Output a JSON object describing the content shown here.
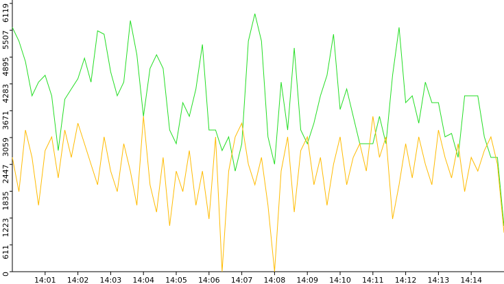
{
  "chart_data": {
    "type": "line",
    "x": [
      0,
      0.2,
      0.4,
      0.6,
      0.8,
      1,
      1.2,
      1.4,
      1.6,
      1.8,
      2,
      2.2,
      2.4,
      2.6,
      2.8,
      3,
      3.2,
      3.4,
      3.6,
      3.8,
      4,
      4.2,
      4.4,
      4.6,
      4.8,
      5,
      5.2,
      5.4,
      5.6,
      5.8,
      6,
      6.2,
      6.4,
      6.6,
      6.8,
      7,
      7.2,
      7.4,
      7.6,
      7.8,
      8,
      8.2,
      8.4,
      8.6,
      8.8,
      9,
      9.2,
      9.4,
      9.6,
      9.8,
      10,
      10.2,
      10.4,
      10.6,
      10.8,
      11,
      11.2,
      11.4,
      11.6,
      11.8,
      12,
      12.2,
      12.4,
      12.6,
      12.8,
      13,
      13.2,
      13.4,
      13.6,
      13.8,
      14,
      14.2,
      14.4,
      14.6,
      14.8,
      15
    ],
    "series": [
      {
        "color": "#22dd22",
        "values": [
          5573,
          5260,
          4792,
          4012,
          4324,
          4480,
          4012,
          2763,
          3934,
          4168,
          4402,
          4870,
          4324,
          5495,
          5417,
          4558,
          4012,
          4324,
          5729,
          4948,
          3543,
          4636,
          4948,
          4636,
          3231,
          2919,
          3856,
          3543,
          4168,
          5183,
          3231,
          3231,
          2763,
          3075,
          2295,
          2919,
          5261,
          5885,
          5261,
          3075,
          2451,
          4324,
          3231,
          5104,
          3231,
          2919,
          3387,
          4012,
          4480,
          5417,
          3700,
          4168,
          3543,
          2919,
          2919,
          2919,
          3543,
          2919,
          4480,
          5573,
          3856,
          4012,
          3387,
          4324,
          3856,
          3856,
          3075,
          3153,
          2607,
          4012,
          4012,
          4012,
          3075,
          2607,
          2607,
          1046
        ]
      },
      {
        "color": "#ffbb00",
        "values": [
          2607,
          1826,
          3231,
          2607,
          1514,
          2763,
          3075,
          2139,
          3231,
          2607,
          3387,
          2919,
          2451,
          1982,
          3075,
          2295,
          1826,
          2919,
          2295,
          1514,
          3543,
          1982,
          1358,
          2607,
          1046,
          2295,
          1826,
          2763,
          1514,
          2295,
          1202,
          3075,
          0,
          2295,
          3075,
          3387,
          2451,
          1982,
          2607,
          1514,
          0,
          2295,
          3075,
          1358,
          2763,
          3075,
          1982,
          2607,
          1514,
          2451,
          3075,
          1982,
          2607,
          2919,
          2295,
          3543,
          2607,
          3075,
          1202,
          1982,
          2919,
          2139,
          3075,
          2451,
          1982,
          3231,
          2607,
          2139,
          2919,
          1826,
          2607,
          2295,
          2763,
          3075,
          2451,
          890
        ]
      }
    ],
    "xlim": [
      0,
      15
    ],
    "xticks": [
      {
        "value": 1,
        "label": "14:01"
      },
      {
        "value": 2,
        "label": "14:02"
      },
      {
        "value": 3,
        "label": "14:03"
      },
      {
        "value": 4,
        "label": "14:04"
      },
      {
        "value": 5,
        "label": "14:05"
      },
      {
        "value": 6,
        "label": "14:06"
      },
      {
        "value": 7,
        "label": "14:07"
      },
      {
        "value": 8,
        "label": "14:08"
      },
      {
        "value": 9,
        "label": "14:09"
      },
      {
        "value": 10,
        "label": "14:10"
      },
      {
        "value": 11,
        "label": "14:11"
      },
      {
        "value": 12,
        "label": "14:12"
      },
      {
        "value": 13,
        "label": "14:13"
      },
      {
        "value": 14,
        "label": "14:14"
      }
    ],
    "ylim": [
      0,
      6119
    ],
    "yticks": [
      0,
      611,
      1223,
      1835,
      2447,
      3059,
      3671,
      4283,
      4895,
      5507,
      6119
    ]
  }
}
